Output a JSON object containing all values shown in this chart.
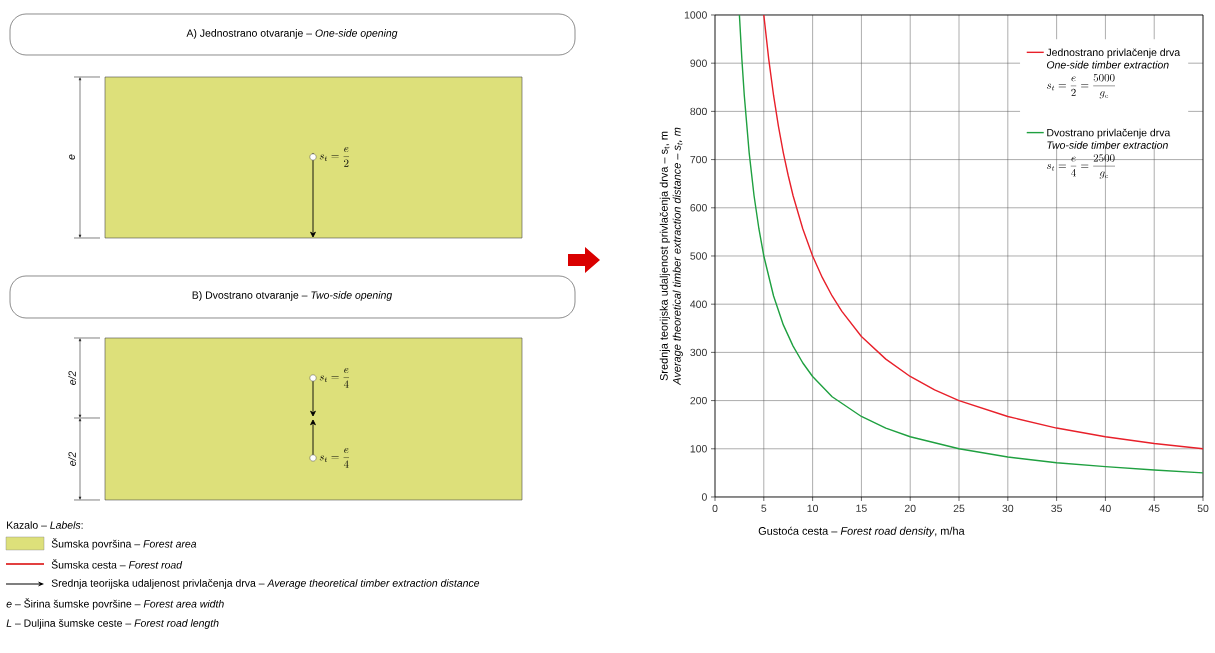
{
  "chart_data": [
    {
      "type": "other",
      "annotations": [
        "A) Jednostrano otvaranje – *One-side opening*",
        "e",
        "s_{t} = \\frac{e}{2}",
        "B) Dvostrano otvaranje – *Two-side opening*",
        "e/2",
        "e/2",
        "s_{t} = \\frac{e}{4}",
        "s_{t} = \\frac{e}{4}",
        "Kazalo – *Labels*:",
        "Šumska površina – *Forest area*",
        "Šumska cesta – *Forest road*",
        "Srednja teorijska udaljenost privlačenja drva – *Average theoretical timber extraction distance*",
        "*e* – Širina šumske površine – *Forest area width*",
        "*L* – Duljina šumske ceste – *Forest road length*"
      ]
    },
    {
      "type": "line",
      "xlabel": "Gustoća cesta – *Forest road density*, m/ha",
      "ylabel": "Srednja teorijska udaljenost privlačenja drva – s$_{t}$, m",
      "annotations": [
        "Average theoretical timber extraction distance – s$_{t}$, m",
        "One-side timber extraction",
        "s_{t} = \\frac{e}{2} = \\frac{5000}{g_{c}}",
        "Two-side timber extraction",
        "s_{t} = \\frac{e}{4} = \\frac{2500}{g_{c}}"
      ],
      "series": [
        {
          "name": "Jednostrano privlačenje drva",
          "color": "#e8202a",
          "x": [
            5,
            5.5,
            6,
            6.5,
            7,
            7.5,
            8,
            9,
            10,
            11,
            12,
            13,
            15,
            17.5,
            20,
            22.5,
            25,
            30,
            35,
            40,
            45,
            50
          ],
          "values": [
            1000,
            909,
            833,
            769,
            714,
            667,
            625,
            556,
            500,
            455,
            417,
            385,
            333,
            286,
            250,
            222,
            200,
            167,
            143,
            125,
            111,
            100
          ]
        },
        {
          "name": "Dvostrano privlačenje drva",
          "color": "#1fa040",
          "x": [
            2.5,
            2.75,
            3,
            3.5,
            4,
            4.5,
            5,
            6,
            7,
            8,
            9,
            10,
            12,
            15,
            17.5,
            20,
            25,
            30,
            35,
            40,
            45,
            50
          ],
          "values": [
            1000,
            909,
            833,
            714,
            625,
            556,
            500,
            417,
            357,
            313,
            278,
            250,
            208,
            167,
            143,
            125,
            100,
            83,
            71,
            63,
            56,
            50
          ]
        }
      ],
      "xlim": [
        0,
        50
      ],
      "ylim": [
        0,
        1000
      ],
      "xticks": [
        0,
        5,
        10,
        15,
        20,
        25,
        30,
        35,
        40,
        45,
        50
      ],
      "yticks": [
        0,
        100,
        200,
        300,
        400,
        500,
        600,
        700,
        800,
        900,
        1000
      ],
      "grid": true,
      "legend": "top right"
    }
  ]
}
